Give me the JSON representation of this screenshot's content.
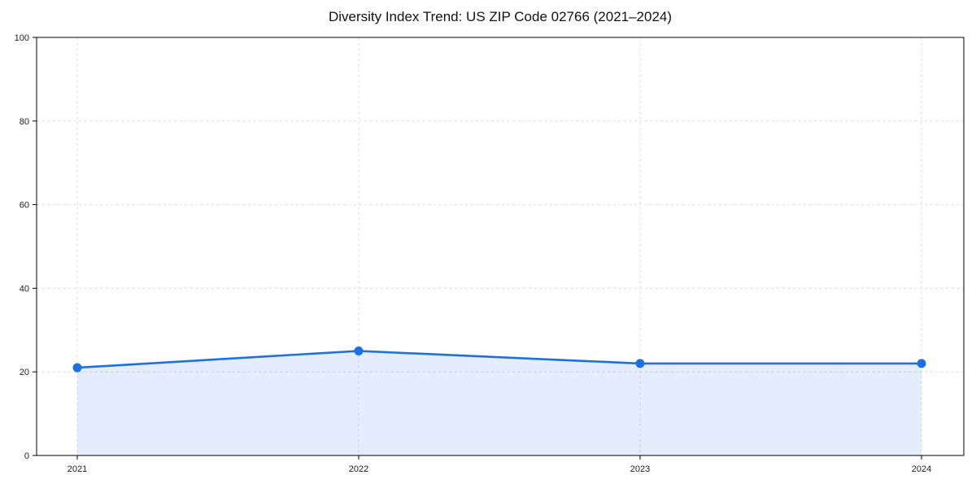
{
  "figure": {
    "background": "#ffffff"
  },
  "chart_data": {
    "type": "area",
    "title": "Diversity Index Trend: US ZIP Code 02766 (2021–2024)",
    "categories": [
      "2021",
      "2022",
      "2023",
      "2024"
    ],
    "series": [
      {
        "name": "Diversity Index",
        "values": [
          21,
          25,
          22,
          22
        ]
      }
    ],
    "xlabel": "",
    "ylabel": "",
    "ylim": [
      0,
      100
    ],
    "yticks": [
      0,
      20,
      40,
      60,
      80,
      100
    ],
    "grid": true,
    "grid_style": "dashed",
    "legend_position": "none",
    "marker": "circle",
    "colors": {
      "line": "#1f6fe0",
      "marker": "#1f6fe0",
      "fill": "#1f6fe0",
      "fill_opacity": 0.12,
      "grid": "#dcdcdc",
      "spine": "#000000",
      "tick_text": "#1a1a1a",
      "title_text": "#111111"
    }
  }
}
